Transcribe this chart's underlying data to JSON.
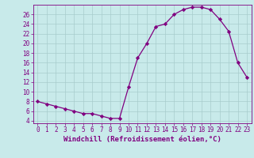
{
  "x": [
    0,
    1,
    2,
    3,
    4,
    5,
    6,
    7,
    8,
    9,
    10,
    11,
    12,
    13,
    14,
    15,
    16,
    17,
    18,
    19,
    20,
    21,
    22,
    23
  ],
  "y": [
    8,
    7.5,
    7,
    6.5,
    6,
    5.5,
    5.5,
    5,
    4.5,
    4.5,
    11,
    17,
    20,
    23.5,
    24,
    26,
    27,
    27.5,
    27.5,
    27,
    25,
    22.5,
    16,
    13
  ],
  "xlim": [
    -0.5,
    23.5
  ],
  "ylim": [
    3.5,
    28
  ],
  "yticks": [
    4,
    6,
    8,
    10,
    12,
    14,
    16,
    18,
    20,
    22,
    24,
    26
  ],
  "xticks": [
    0,
    1,
    2,
    3,
    4,
    5,
    6,
    7,
    8,
    9,
    10,
    11,
    12,
    13,
    14,
    15,
    16,
    17,
    18,
    19,
    20,
    21,
    22,
    23
  ],
  "xlabel": "Windchill (Refroidissement éolien,°C)",
  "line_color": "#800080",
  "marker": "D",
  "marker_size": 2.2,
  "bg_color": "#c8eaea",
  "grid_color": "#a8cccc",
  "tick_color": "#800080",
  "label_color": "#800080",
  "font_size_tick": 5.5,
  "font_size_label": 6.5
}
